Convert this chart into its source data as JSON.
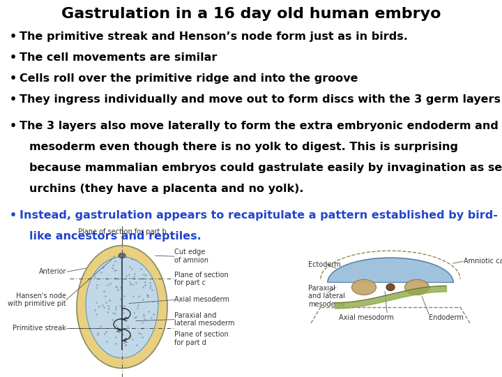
{
  "title": "Gastrulation in a 16 day old human embryo",
  "title_fontsize": 16,
  "background_color": "#ffffff",
  "bullet_color": "#000000",
  "blue_color": "#2244cc",
  "bullets_black": [
    "The primitive streak and Henson’s node form just as in birds.",
    "The cell movements are similar",
    "Cells roll over the primitive ridge and into the groove",
    "They ingress individually and move out to form discs with the 3 germ layers"
  ],
  "bullet_bold_line1": "The 3 layers also move laterally to form the extra embryonic endoderm and",
  "bullet_bold_line2": "mesoderm even though there is no yolk to digest. This is surprising",
  "bullet_bold_line3": "because mammalian embryos could gastrulate easily by invagination as sea",
  "bullet_bold_line4": "urchins (they have a placenta and no yolk).",
  "bullet_blue_line1": "Instead, gastrulation appears to recapitulate a pattern established by bird-",
  "bullet_blue_line2": "like ancestors and reptiles.",
  "bullet_fontsize": 11.5,
  "lbl_fontsize": 7.0,
  "outer_ellipse_color": "#e8d080",
  "inner_ellipse_color": "#c0d8e8",
  "embryo_edge_color": "#888860",
  "inner_edge_color": "#7090a0"
}
